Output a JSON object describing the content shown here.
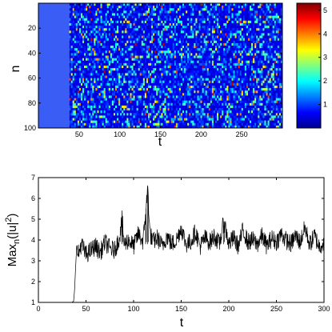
{
  "chart_data": [
    {
      "type": "heatmap",
      "xlabel": "t",
      "ylabel": "n",
      "xlim": [
        0,
        300
      ],
      "ylim": [
        100,
        0
      ],
      "x_ticks": [
        50,
        100,
        150,
        200,
        250
      ],
      "y_ticks": [
        20,
        40,
        60,
        80,
        100
      ],
      "colorbar": {
        "range": [
          0,
          5.3
        ],
        "ticks": [
          1,
          2,
          3,
          4,
          5
        ],
        "colormap": "jet"
      },
      "field_onset_t": 38,
      "field_mean_level": 1.0,
      "field_max_level": 5.2,
      "colors": {
        "background_before_onset": "#3a5ef5"
      }
    },
    {
      "type": "line",
      "xlabel": "t",
      "ylabel": "Max_n(|u|^2)",
      "ylabel_parts": {
        "main": "Max",
        "sub": "n",
        "paren_open": "(|u|",
        "sup": "2",
        "paren_close": ")"
      },
      "xlim": [
        0,
        300
      ],
      "ylim": [
        1,
        7
      ],
      "x_ticks": [
        0,
        50,
        100,
        150,
        200,
        250,
        300
      ],
      "y_ticks": [
        1,
        2,
        3,
        4,
        5,
        6,
        7
      ],
      "series": [
        {
          "points": [
            [
              0,
              1.0
            ],
            [
              35,
              1.0
            ],
            [
              37,
              1.05
            ],
            [
              38,
              1.6
            ],
            [
              39,
              2.6
            ],
            [
              40,
              3.5
            ],
            [
              42,
              3.3
            ],
            [
              45,
              3.8
            ],
            [
              50,
              3.3
            ],
            [
              55,
              3.5
            ],
            [
              60,
              3.7
            ],
            [
              65,
              3.4
            ],
            [
              70,
              3.9
            ],
            [
              75,
              3.6
            ],
            [
              80,
              3.5
            ],
            [
              85,
              4.1
            ],
            [
              88,
              5.0
            ],
            [
              90,
              3.8
            ],
            [
              95,
              4.0
            ],
            [
              100,
              3.7
            ],
            [
              105,
              4.3
            ],
            [
              110,
              3.9
            ],
            [
              113,
              5.5
            ],
            [
              115,
              6.5
            ],
            [
              117,
              4.4
            ],
            [
              120,
              3.9
            ],
            [
              125,
              4.1
            ],
            [
              130,
              3.7
            ],
            [
              135,
              4.2
            ],
            [
              140,
              3.8
            ],
            [
              145,
              4.0
            ],
            [
              150,
              4.6
            ],
            [
              155,
              3.8
            ],
            [
              160,
              3.9
            ],
            [
              165,
              4.4
            ],
            [
              170,
              3.7
            ],
            [
              175,
              4.1
            ],
            [
              180,
              3.9
            ],
            [
              185,
              4.2
            ],
            [
              190,
              3.8
            ],
            [
              195,
              4.9
            ],
            [
              200,
              3.8
            ],
            [
              205,
              4.1
            ],
            [
              210,
              3.7
            ],
            [
              215,
              4.5
            ],
            [
              220,
              3.9
            ],
            [
              225,
              4.0
            ],
            [
              230,
              3.8
            ],
            [
              235,
              4.2
            ],
            [
              240,
              3.7
            ],
            [
              245,
              4.1
            ],
            [
              250,
              3.9
            ],
            [
              255,
              4.3
            ],
            [
              260,
              4.0
            ],
            [
              265,
              3.8
            ],
            [
              270,
              4.2
            ],
            [
              275,
              3.9
            ],
            [
              280,
              4.6
            ],
            [
              285,
              3.8
            ],
            [
              290,
              4.2
            ],
            [
              295,
              3.7
            ],
            [
              300,
              3.9
            ]
          ],
          "noise_amplitude_after_onset": 0.45,
          "color": "#000000"
        }
      ]
    }
  ]
}
